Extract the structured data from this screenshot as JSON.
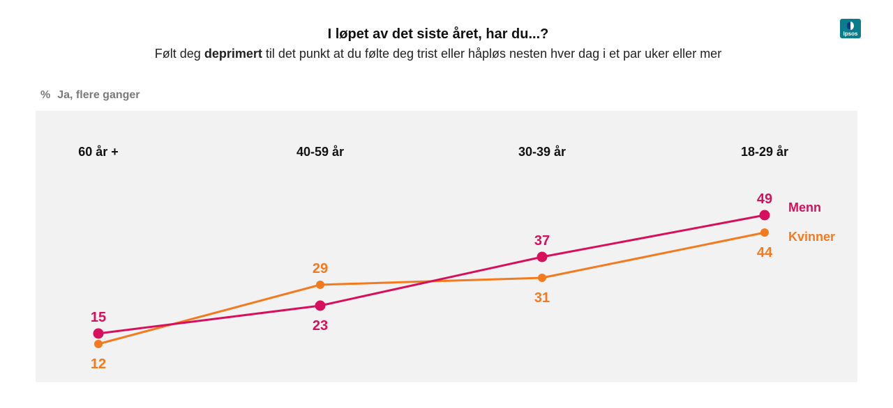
{
  "header": {
    "title": "I løpet av det siste året, har du...?",
    "subtitle_pre": "Følt deg ",
    "subtitle_bold": "deprimert",
    "subtitle_post": " til det punkt at du følte deg trist eller håpløs nesten hver dag i et par uker eller mer",
    "measure_symbol": "%",
    "measure_label": "Ja, flere ganger"
  },
  "logo": {
    "text": "Ipsos",
    "color": "#0a7d8c"
  },
  "chart_data": {
    "type": "line",
    "categories": [
      "60 år +",
      "40-59 år",
      "30-39 år",
      "18-29 år"
    ],
    "series": [
      {
        "name": "Menn",
        "values": [
          15,
          23,
          37,
          49
        ],
        "color": "#d6105c"
      },
      {
        "name": "Kvinner",
        "values": [
          12,
          29,
          31,
          44
        ],
        "color": "#f47a1f"
      }
    ],
    "grid": false,
    "legend": "right"
  }
}
